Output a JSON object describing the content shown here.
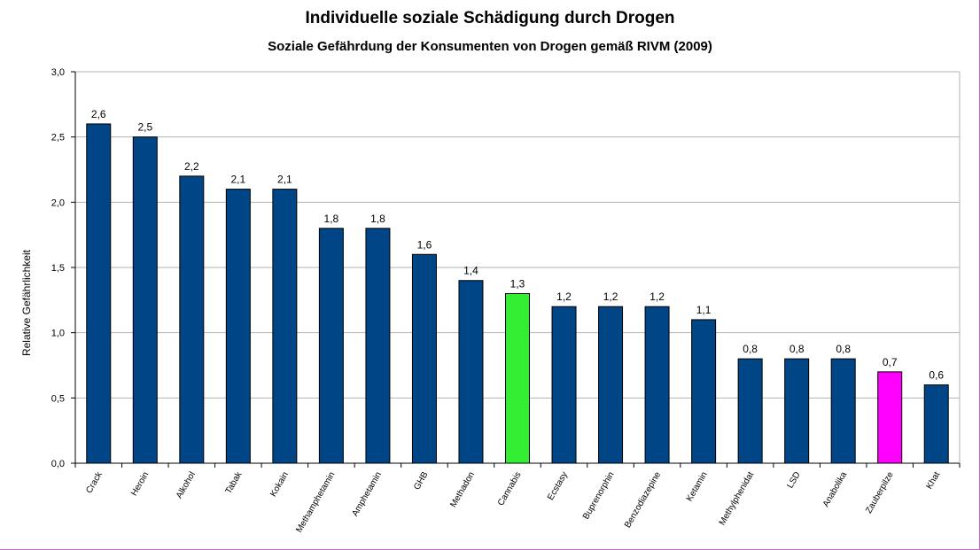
{
  "colors": {
    "bar_default": "#004586",
    "bar_cannabis": "#33ee33",
    "bar_zauberpilze": "#ff00ff",
    "frame_border": "#cc66cc",
    "grid": "#b3b3b3"
  },
  "chart_data": {
    "type": "bar",
    "title": "Individuelle soziale Schädigung durch Drogen",
    "subtitle": "Soziale Gefährdung der Konsumenten von Drogen gemäß RIVM (2009)",
    "xlabel": "",
    "ylabel": "Relative Gefährlichkeit",
    "ylim": [
      0,
      3.0
    ],
    "yticks": [
      "0,0",
      "0,5",
      "1,0",
      "1,5",
      "2,0",
      "2,5",
      "3,0"
    ],
    "grid": true,
    "categories": [
      "Crack",
      "Heroin",
      "Alkohol",
      "Tabak",
      "Kokain",
      "Methamphetamin",
      "Amphetamin",
      "GHB",
      "Methadon",
      "Cannabis",
      "Ecstasy",
      "Buprenorphin",
      "Benzodiazepine",
      "Ketamin",
      "Methylphenidat",
      "LSD",
      "Anabolika",
      "Zauberpilze",
      "Khat"
    ],
    "values": [
      2.6,
      2.5,
      2.2,
      2.1,
      2.1,
      1.8,
      1.8,
      1.6,
      1.4,
      1.3,
      1.2,
      1.2,
      1.2,
      1.1,
      0.8,
      0.8,
      0.8,
      0.7,
      0.6
    ],
    "value_labels": [
      "2,6",
      "2,5",
      "2,2",
      "2,1",
      "2,1",
      "1,8",
      "1,8",
      "1,6",
      "1,4",
      "1,3",
      "1,2",
      "1,2",
      "1,2",
      "1,1",
      "0,8",
      "0,8",
      "0,8",
      "0,7",
      "0,6"
    ],
    "highlight": {
      "Cannabis": "#33ee33",
      "Zauberpilze": "#ff00ff"
    }
  }
}
